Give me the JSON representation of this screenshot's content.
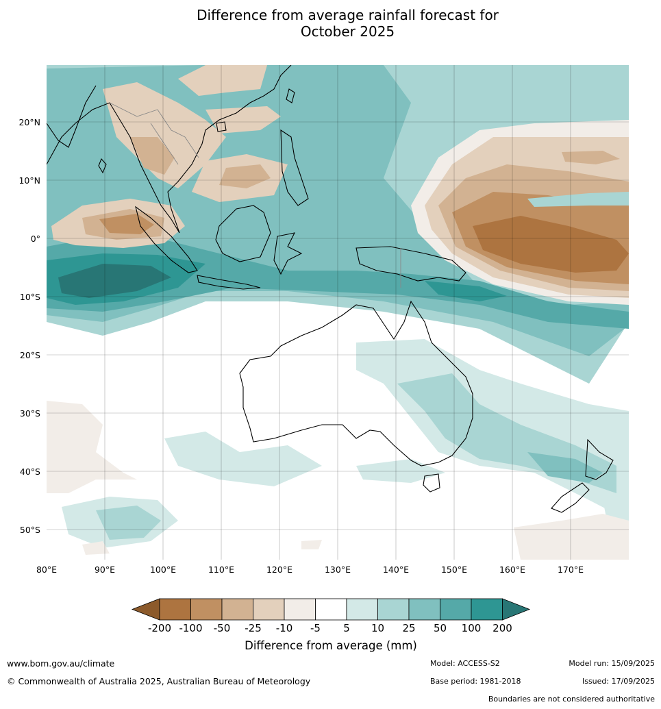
{
  "title_line1": "Difference from average rainfall forecast for",
  "title_line2": "October 2025",
  "map": {
    "lon_ticks": [
      "80°E",
      "90°E",
      "100°E",
      "110°E",
      "120°E",
      "130°E",
      "140°E",
      "150°E",
      "160°E",
      "170°E"
    ],
    "lat_ticks": [
      "20°N",
      "10°N",
      "0°",
      "10°S",
      "20°S",
      "30°S",
      "40°S",
      "50°S"
    ],
    "gridlines": true
  },
  "colorbar": {
    "title": "Difference from average (mm)",
    "labels": [
      "-200",
      "-100",
      "-50",
      "-25",
      "-10",
      "-5",
      "5",
      "10",
      "25",
      "50",
      "100",
      "200"
    ],
    "colors": [
      "#8c5a2b",
      "#ad7440",
      "#c09062",
      "#d2b292",
      "#e3d0bc",
      "#f2ede8",
      "#ffffff",
      "#d3e9e7",
      "#a9d5d3",
      "#80c0bf",
      "#55a9a8",
      "#2e9693",
      "#287675"
    ]
  },
  "footer": {
    "website": "www.bom.gov.au/climate",
    "copyright": "© Commonwealth of Australia 2025, Australian Bureau of Meteorology",
    "model": "Model: ACCESS-S2",
    "base_period": "Base period: 1981-2018",
    "model_run": "Model run: 15/09/2025",
    "issued": "Issued: 17/09/2025",
    "disclaimer": "Boundaries are not considered authoritative"
  }
}
